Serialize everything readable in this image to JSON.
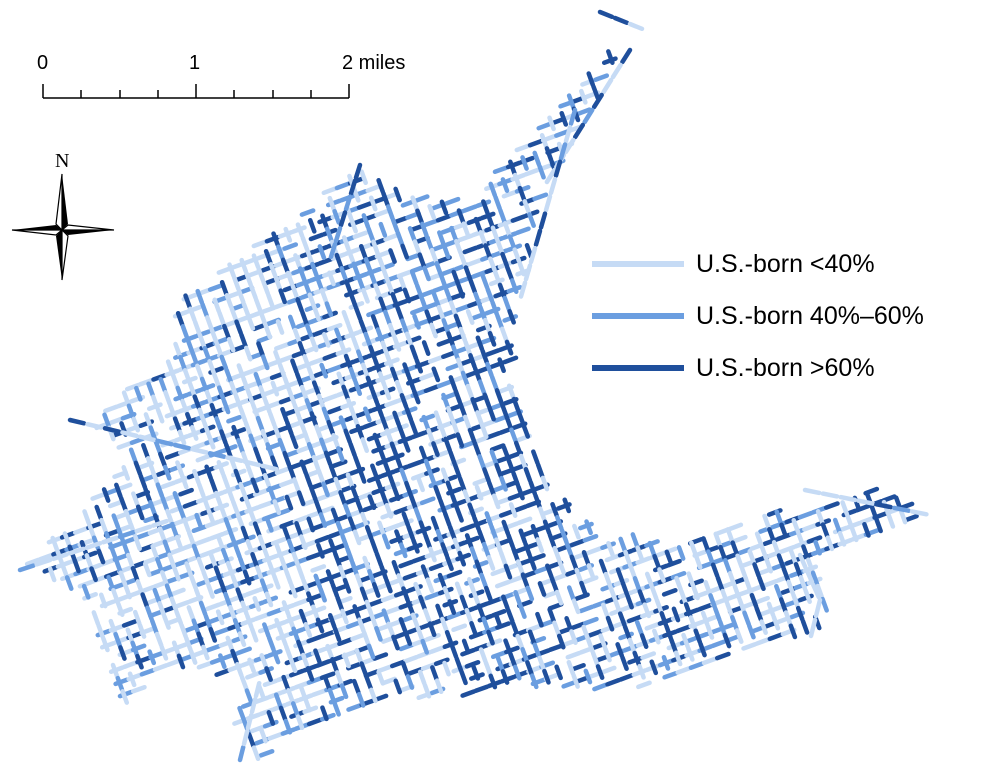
{
  "scale_bar": {
    "ticks": [
      "0",
      "1",
      "2 miles"
    ]
  },
  "north_arrow": {
    "label": "N"
  },
  "legend": {
    "items": [
      {
        "label": "U.S.-born <40%",
        "color": "#c6dbf5"
      },
      {
        "label": "U.S.-born 40%–60%",
        "color": "#6b9ee0"
      },
      {
        "label": "U.S.-born >60%",
        "color": "#1f4f9c"
      }
    ]
  },
  "colors": {
    "light": "#c6dbf5",
    "medium": "#6b9ee0",
    "dark": "#1f4f9c"
  }
}
